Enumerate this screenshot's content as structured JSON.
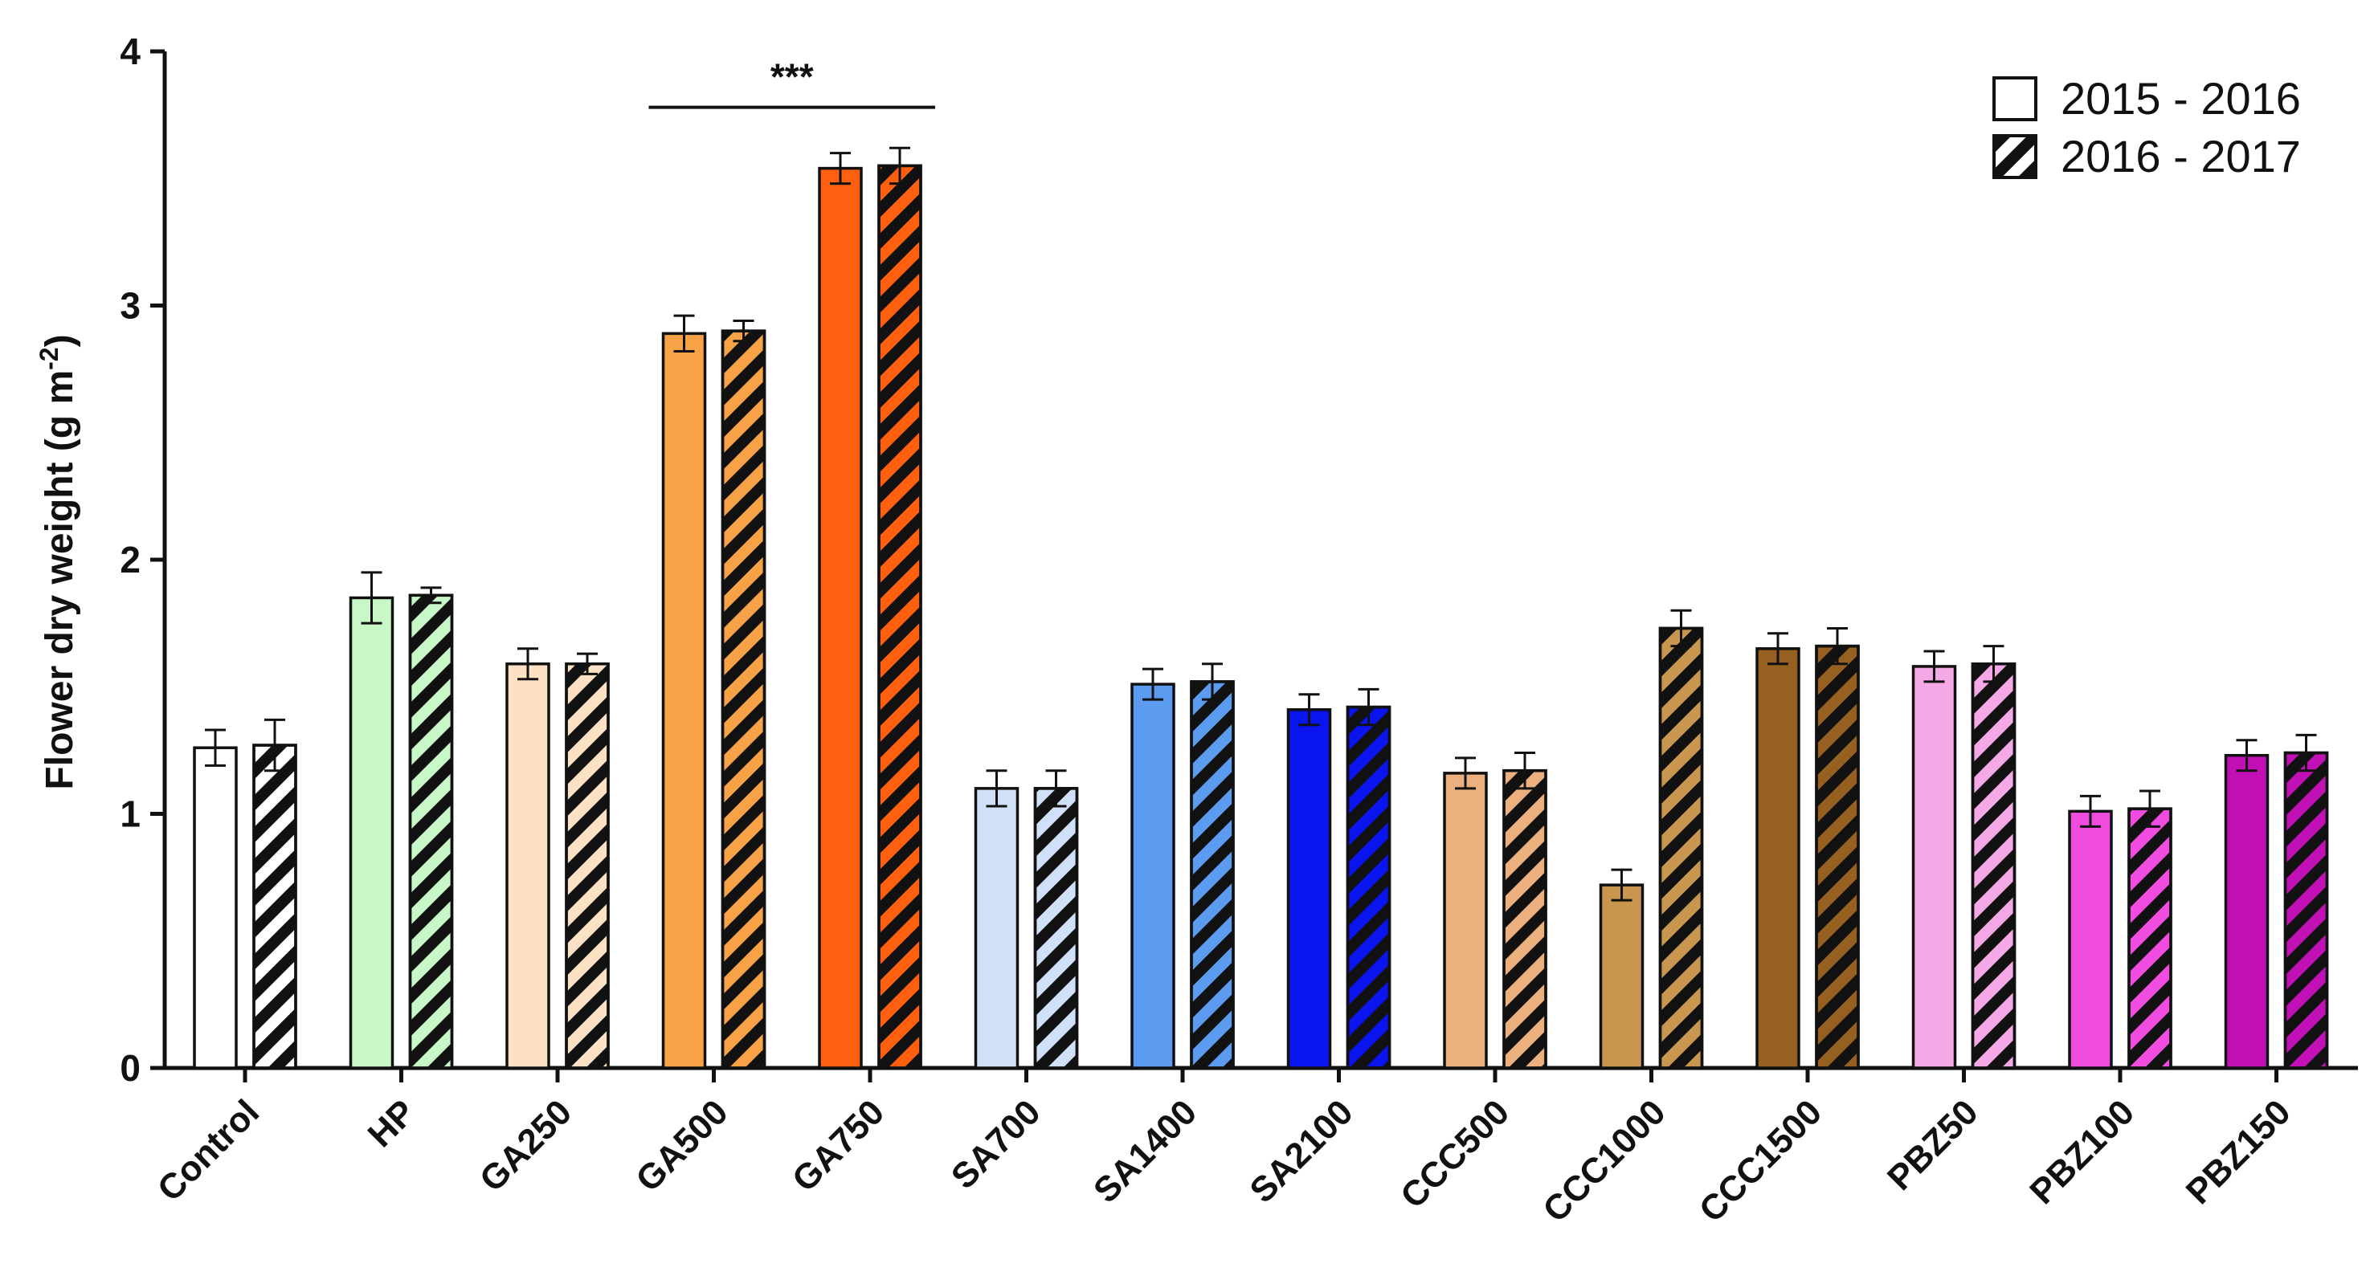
{
  "chart_data": {
    "type": "bar",
    "title": "",
    "xlabel": "",
    "ylabel": "Flower dry weight (g m",
    "ylabel_sup": "-2",
    "ylabel_close": ")",
    "ylim": [
      0,
      4
    ],
    "yticks": [
      "0",
      "1",
      "2",
      "3",
      "4"
    ],
    "categories": [
      "Control",
      "HP",
      "GA250",
      "GA500",
      "GA750",
      "SA700",
      "SA1400",
      "SA2100",
      "CCC500",
      "CCC1000",
      "CCC1500",
      "PBZ50",
      "PBZ100",
      "PBZ150"
    ],
    "colors": [
      "#ffffff",
      "#c8f7c8",
      "#fde1c4",
      "#f7a246",
      "#ff6010",
      "#cfe0f8",
      "#5b9cf0",
      "#0a14ee",
      "#ecb07e",
      "#c8964e",
      "#966020",
      "#f4a8e6",
      "#f04ce0",
      "#c010b6"
    ],
    "series": [
      {
        "name": "2015 - 2016",
        "pattern": "solid",
        "values": [
          1.26,
          1.85,
          1.59,
          2.89,
          3.54,
          1.1,
          1.51,
          1.41,
          1.16,
          0.72,
          1.65,
          1.58,
          1.01,
          1.23
        ],
        "errors": [
          0.07,
          0.1,
          0.06,
          0.07,
          0.06,
          0.07,
          0.06,
          0.06,
          0.06,
          0.06,
          0.06,
          0.06,
          0.06,
          0.06
        ]
      },
      {
        "name": "2016 - 2017",
        "pattern": "hatched",
        "values": [
          1.27,
          1.86,
          1.59,
          2.9,
          3.55,
          1.1,
          1.52,
          1.42,
          1.17,
          1.73,
          1.66,
          1.59,
          1.02,
          1.24
        ],
        "errors": [
          0.1,
          0.03,
          0.04,
          0.04,
          0.07,
          0.07,
          0.07,
          0.07,
          0.07,
          0.07,
          0.07,
          0.07,
          0.07,
          0.07
        ]
      }
    ],
    "annotations": [
      {
        "text": "***",
        "from_category": "GA500",
        "to_category": "GA750",
        "y": 3.78
      }
    ],
    "legend": {
      "placement": "top-right"
    },
    "grid": false
  }
}
